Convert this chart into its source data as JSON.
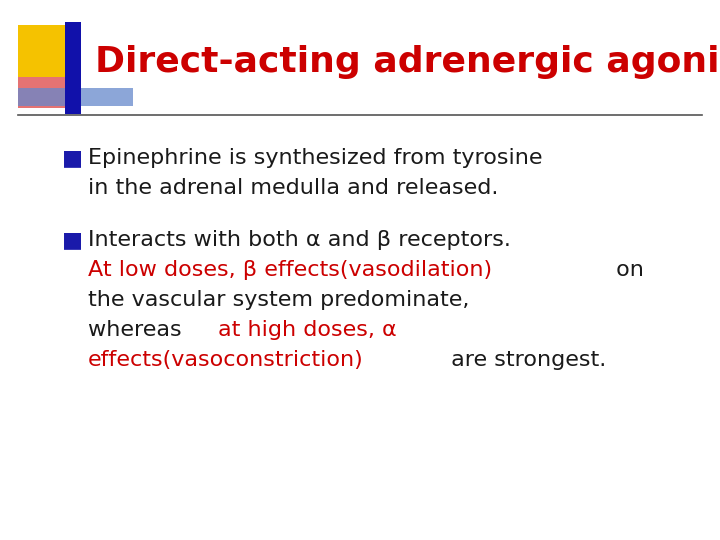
{
  "background_color": "#ffffff",
  "title": "Direct-acting adrenergic agonists",
  "title_color": "#cc0000",
  "title_fontsize": 26,
  "line_color": "#555555",
  "bullet_color": "#1a1aaa",
  "bullet1_line1": "Epinephrine is synthesized from tyrosine",
  "bullet1_line2": "in the adrenal medulla and released.",
  "bullet2_line1": "Interacts with both α and β receptors.",
  "bullet2_line2_red": "At low doses, β effects(vasodilation)",
  "bullet2_line2_black": " on",
  "bullet2_line3": "the vascular system predominate,",
  "bullet2_line4_black": "whereas ",
  "bullet2_line4_red": "at high doses, α",
  "bullet2_line5_red": "effects(vasoconstriction)",
  "bullet2_line5_black": " are strongest.",
  "text_color_black": "#1a1a1a",
  "text_color_red": "#cc0000",
  "body_fontsize": 16,
  "deco_yellow": "#f5c200",
  "deco_red": "#dd4444",
  "deco_blue_dark": "#1111aa",
  "deco_blue_light": "#6688cc"
}
